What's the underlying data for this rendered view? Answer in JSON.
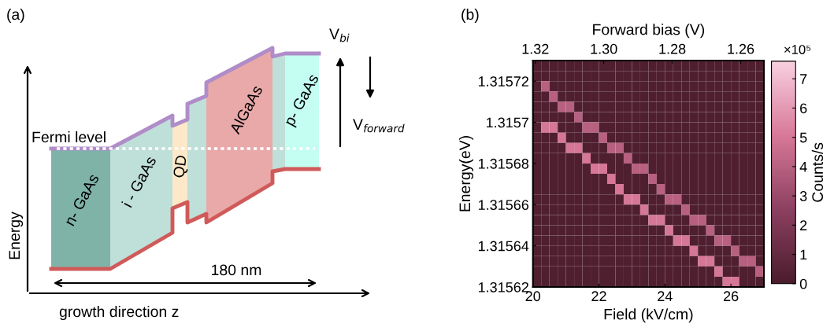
{
  "chart_data": [
    {
      "type": "other",
      "title": "(a)",
      "annotations": [
        "Fermi level",
        "n- GaAs",
        "i - GaAs",
        "QD",
        "AlGaAs",
        "p- GaAs",
        "V$_{bi}$",
        "V$_{forward}$",
        "180 nm",
        "growth direction z",
        "Energy"
      ]
    },
    {
      "type": "heatmap",
      "title": "(b)",
      "xlabel": "Field (kV/cm)",
      "ylabel": "Energy(eV)",
      "x2label": "Forward bias (V)",
      "clabel": "Counts/s",
      "annotations": [
        "×10⁵"
      ],
      "xlim": [
        20,
        27
      ],
      "xticks": [
        20,
        22,
        24,
        26
      ],
      "x2lim": [
        1.3207,
        1.2532
      ],
      "x2ticks": [
        1.32,
        {
          "value": 1.3,
          "label": "1.30"
        },
        1.28,
        1.26
      ],
      "ylim": [
        1.31562,
        1.31573
      ],
      "yticks": [
        1.31562,
        1.31564,
        1.31566,
        1.31568,
        1.3157,
        1.31572
      ],
      "clim": [
        0,
        7.6
      ],
      "cticks": [
        0,
        1,
        2,
        3,
        4,
        5,
        6,
        7
      ],
      "cells": [
        [
          0.2,
          0.2,
          0.2,
          0.2,
          0.2,
          0.2,
          0.2,
          0.2,
          0.2,
          0.2,
          0.2,
          0.2,
          0.2,
          0.2,
          0.2,
          0.2,
          0.2,
          0.2,
          0.2,
          0.2,
          0.2,
          0.2,
          0.2,
          0.2,
          0.2,
          0.2,
          0.2,
          0.2
        ],
        [
          0.2,
          0.2,
          0.2,
          0.2,
          0.2,
          0.2,
          0.2,
          0.2,
          0.2,
          0.2,
          0.2,
          0.2,
          0.2,
          0.2,
          0.2,
          0.2,
          0.2,
          0.2,
          0.2,
          0.2,
          0.2,
          0.2,
          0.2,
          0.2,
          0.2,
          0.2,
          0.2,
          0.2
        ],
        [
          0.2,
          4,
          0.2,
          0.2,
          0.2,
          0.2,
          0.2,
          0.2,
          0.2,
          0.2,
          0.2,
          0.2,
          0.2,
          0.2,
          0.2,
          0.2,
          0.2,
          0.2,
          0.2,
          0.2,
          0.2,
          0.2,
          0.2,
          0.2,
          0.2,
          0.2,
          0.2,
          0.2
        ],
        [
          0.2,
          0.2,
          4,
          0.2,
          0.2,
          0.2,
          0.2,
          0.2,
          0.2,
          0.2,
          0.2,
          0.2,
          0.2,
          0.2,
          0.2,
          0.2,
          0.2,
          0.2,
          0.2,
          0.2,
          0.2,
          0.2,
          0.2,
          0.2,
          0.2,
          0.2,
          0.2,
          0.2
        ],
        [
          0.2,
          0.2,
          0.2,
          4,
          4,
          0.2,
          0.2,
          0.2,
          0.2,
          0.2,
          0.2,
          0.2,
          0.2,
          0.2,
          0.2,
          0.2,
          0.2,
          0.2,
          0.2,
          0.2,
          0.2,
          0.2,
          0.2,
          0.2,
          0.2,
          0.2,
          0.2,
          0.2
        ],
        [
          0.2,
          0.2,
          0.2,
          0.2,
          0.2,
          4,
          0.2,
          0.2,
          0.2,
          0.2,
          0.2,
          0.2,
          0.2,
          0.2,
          0.2,
          0.2,
          0.2,
          0.2,
          0.2,
          0.2,
          0.2,
          0.2,
          0.2,
          0.2,
          0.2,
          0.2,
          0.2,
          0.2
        ],
        [
          0.2,
          5,
          5,
          0.2,
          0.2,
          0.2,
          4,
          4,
          0.2,
          0.2,
          0.2,
          0.2,
          0.2,
          0.2,
          0.2,
          0.2,
          0.2,
          0.2,
          0.2,
          0.2,
          0.2,
          0.2,
          0.2,
          0.2,
          0.2,
          0.2,
          0.2,
          0.2
        ],
        [
          0.2,
          0.2,
          0.2,
          5,
          0.2,
          0.2,
          0.2,
          0.2,
          4,
          0.2,
          0.2,
          0.2,
          0.2,
          0.2,
          0.2,
          0.2,
          0.2,
          0.2,
          0.2,
          0.2,
          0.2,
          0.2,
          0.2,
          0.2,
          0.2,
          0.2,
          0.2,
          0.2
        ],
        [
          0.2,
          0.2,
          0.2,
          0.2,
          5,
          5,
          0.2,
          0.2,
          0.2,
          4,
          4,
          0.2,
          0.2,
          0.2,
          0.2,
          0.2,
          0.2,
          0.2,
          0.2,
          0.2,
          0.2,
          0.2,
          0.2,
          0.2,
          0.2,
          0.2,
          0.2,
          0.2
        ],
        [
          0.2,
          0.2,
          0.2,
          0.2,
          0.2,
          0.2,
          5,
          0.2,
          0.2,
          0.2,
          0.2,
          4,
          0.2,
          0.2,
          0.2,
          0.2,
          0.2,
          0.2,
          0.2,
          0.2,
          0.2,
          0.2,
          0.2,
          0.2,
          0.2,
          0.2,
          0.2,
          0.2
        ],
        [
          0.2,
          0.2,
          0.2,
          0.2,
          0.2,
          0.2,
          0.2,
          5,
          5,
          0.2,
          0.2,
          0.2,
          4,
          4,
          0.2,
          0.2,
          0.2,
          0.2,
          0.2,
          0.2,
          0.2,
          0.2,
          0.2,
          0.2,
          0.2,
          0.2,
          0.2,
          0.2
        ],
        [
          0.2,
          0.2,
          0.2,
          0.2,
          0.2,
          0.2,
          0.2,
          0.2,
          0.2,
          5,
          0.2,
          0.2,
          0.2,
          0.2,
          4,
          0.2,
          0.2,
          0.2,
          0.2,
          0.2,
          0.2,
          0.2,
          0.2,
          0.2,
          0.2,
          0.2,
          0.2,
          0.2
        ],
        [
          0.2,
          0.2,
          0.2,
          0.2,
          0.2,
          0.2,
          0.2,
          0.2,
          0.2,
          0.2,
          5,
          0.2,
          0.2,
          0.2,
          0.2,
          4,
          0.2,
          0.2,
          0.2,
          0.2,
          0.2,
          0.2,
          0.2,
          0.2,
          0.2,
          0.2,
          0.2,
          0.2
        ],
        [
          0.2,
          0.2,
          0.2,
          0.2,
          0.2,
          0.2,
          0.2,
          0.2,
          0.2,
          0.2,
          0.2,
          5,
          5,
          0.2,
          0.2,
          0.2,
          4,
          4,
          0.2,
          0.2,
          0.2,
          0.2,
          0.2,
          0.2,
          0.2,
          0.2,
          0.2,
          0.2
        ],
        [
          0.2,
          0.2,
          0.2,
          0.2,
          0.2,
          0.2,
          0.2,
          0.2,
          0.2,
          0.2,
          0.2,
          0.2,
          0.2,
          5,
          0.2,
          0.2,
          0.2,
          0.2,
          4,
          0.2,
          0.2,
          0.2,
          0.2,
          0.2,
          0.2,
          0.2,
          0.2,
          0.2
        ],
        [
          0.2,
          0.2,
          0.2,
          0.2,
          0.2,
          0.2,
          0.2,
          0.2,
          0.2,
          0.2,
          0.2,
          0.2,
          0.2,
          0.2,
          5,
          5,
          0.2,
          0.2,
          0.2,
          4,
          4,
          0.2,
          0.2,
          0.2,
          0.2,
          0.2,
          0.2,
          0.2
        ],
        [
          0.2,
          0.2,
          0.2,
          0.2,
          0.2,
          0.2,
          0.2,
          0.2,
          0.2,
          0.2,
          0.2,
          0.2,
          0.2,
          0.2,
          0.2,
          0.2,
          5,
          0.2,
          0.2,
          0.2,
          0.2,
          4,
          0.2,
          0.2,
          0.2,
          0.2,
          0.2,
          0.2
        ],
        [
          0.2,
          0.2,
          0.2,
          0.2,
          0.2,
          0.2,
          0.2,
          0.2,
          0.2,
          0.2,
          0.2,
          0.2,
          0.2,
          0.2,
          0.2,
          0.2,
          0.2,
          5,
          5,
          0.2,
          0.2,
          0.2,
          4,
          4,
          0.2,
          0.2,
          0.2,
          0.2
        ],
        [
          0.2,
          0.2,
          0.2,
          0.2,
          0.2,
          0.2,
          0.2,
          0.2,
          0.2,
          0.2,
          0.2,
          0.2,
          0.2,
          0.2,
          0.2,
          0.2,
          0.2,
          0.2,
          0.2,
          5,
          0.2,
          0.2,
          0.2,
          0.2,
          4,
          0.2,
          0.2,
          0.2
        ],
        [
          0.2,
          0.2,
          0.2,
          0.2,
          0.2,
          0.2,
          0.2,
          0.2,
          0.2,
          0.2,
          0.2,
          0.2,
          0.2,
          0.2,
          0.2,
          0.2,
          0.2,
          0.2,
          0.2,
          0.2,
          5,
          5,
          0.2,
          0.2,
          0.2,
          4,
          4,
          0.2
        ],
        [
          0.2,
          0.2,
          0.2,
          0.2,
          0.2,
          0.2,
          0.2,
          0.2,
          0.2,
          0.2,
          0.2,
          0.2,
          0.2,
          0.2,
          0.2,
          0.2,
          0.2,
          0.2,
          0.2,
          0.2,
          0.2,
          0.2,
          5,
          0.2,
          0.2,
          0.2,
          0.2,
          4
        ],
        [
          0.2,
          0.2,
          0.2,
          0.2,
          0.2,
          0.2,
          0.2,
          0.2,
          0.2,
          0.2,
          0.2,
          0.2,
          0.2,
          0.2,
          0.2,
          0.2,
          0.2,
          0.2,
          0.2,
          0.2,
          0.2,
          0.2,
          0.2,
          5,
          5,
          0.2,
          0.2,
          0.2
        ]
      ]
    }
  ]
}
